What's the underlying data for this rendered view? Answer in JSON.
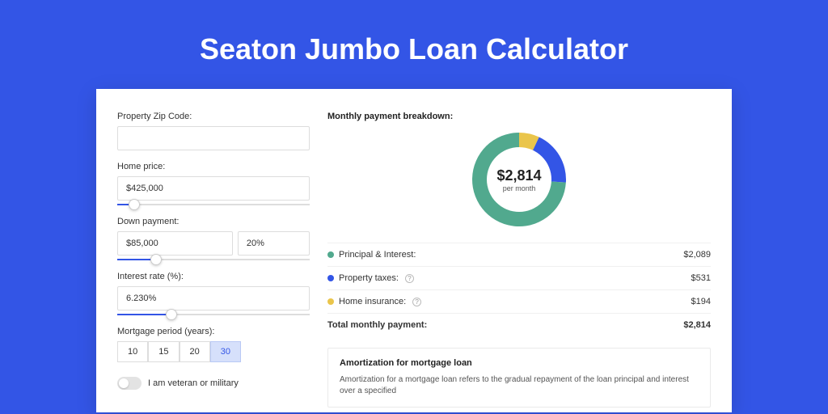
{
  "title": "Seaton Jumbo Loan Calculator",
  "colors": {
    "page_bg": "#3355e6",
    "card_bg": "#ffffff",
    "principal": "#51a98e",
    "taxes": "#3355e6",
    "insurance": "#eac54b"
  },
  "form": {
    "zip_label": "Property Zip Code:",
    "zip_value": "",
    "price_label": "Home price:",
    "price_value": "$425,000",
    "price_slider_pct": 9,
    "down_label": "Down payment:",
    "down_value": "$85,000",
    "down_pct": "20%",
    "down_slider_pct": 20,
    "rate_label": "Interest rate (%):",
    "rate_value": "6.230%",
    "rate_slider_pct": 28,
    "period_label": "Mortgage period (years):",
    "periods": [
      "10",
      "15",
      "20",
      "30"
    ],
    "period_selected": "30",
    "veteran_label": "I am veteran or military"
  },
  "breakdown": {
    "title": "Monthly payment breakdown:",
    "center_value": "$2,814",
    "center_sub": "per month",
    "donut": {
      "principal_pct": 74,
      "taxes_pct": 19,
      "insurance_pct": 7
    },
    "rows": [
      {
        "label": "Principal & Interest:",
        "value": "$2,089",
        "color": "#51a98e",
        "help": false
      },
      {
        "label": "Property taxes:",
        "value": "$531",
        "color": "#3355e6",
        "help": true
      },
      {
        "label": "Home insurance:",
        "value": "$194",
        "color": "#eac54b",
        "help": true
      }
    ],
    "total_label": "Total monthly payment:",
    "total_value": "$2,814"
  },
  "amortization": {
    "title": "Amortization for mortgage loan",
    "text": "Amortization for a mortgage loan refers to the gradual repayment of the loan principal and interest over a specified"
  }
}
